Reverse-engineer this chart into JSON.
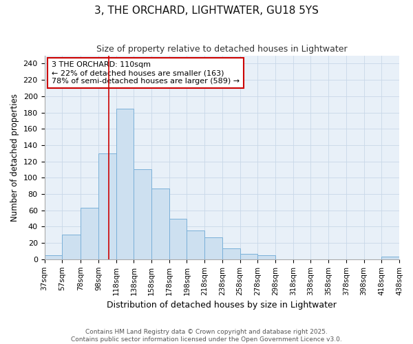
{
  "title1": "3, THE ORCHARD, LIGHTWATER, GU18 5YS",
  "title2": "Size of property relative to detached houses in Lightwater",
  "xlabel": "Distribution of detached houses by size in Lightwater",
  "ylabel": "Number of detached properties",
  "bin_edges": [
    37,
    57,
    78,
    98,
    118,
    138,
    158,
    178,
    198,
    218,
    238,
    258,
    278,
    298,
    318,
    338,
    358,
    378,
    398,
    418,
    438
  ],
  "bin_labels": [
    "37sqm",
    "57sqm",
    "78sqm",
    "98sqm",
    "118sqm",
    "138sqm",
    "158sqm",
    "178sqm",
    "198sqm",
    "218sqm",
    "238sqm",
    "258sqm",
    "278sqm",
    "298sqm",
    "318sqm",
    "338sqm",
    "358sqm",
    "378sqm",
    "398sqm",
    "418sqm",
    "438sqm"
  ],
  "counts": [
    5,
    30,
    63,
    130,
    185,
    110,
    87,
    50,
    35,
    27,
    13,
    7,
    5,
    0,
    0,
    0,
    0,
    0,
    0,
    3
  ],
  "bar_facecolor": "#cde0f0",
  "bar_edgecolor": "#7ab0d8",
  "property_value": 110,
  "annotation_title": "3 THE ORCHARD: 110sqm",
  "annotation_line1": "← 22% of detached houses are smaller (163)",
  "annotation_line2": "78% of semi-detached houses are larger (589) →",
  "vline_color": "#cc0000",
  "annotation_box_edgecolor": "#cc0000",
  "grid_color": "#c8d8e8",
  "background_color": "#e8f0f8",
  "ylim": [
    0,
    250
  ],
  "yticks": [
    0,
    20,
    40,
    60,
    80,
    100,
    120,
    140,
    160,
    180,
    200,
    220,
    240
  ],
  "footer1": "Contains HM Land Registry data © Crown copyright and database right 2025.",
  "footer2": "Contains public sector information licensed under the Open Government Licence v3.0."
}
